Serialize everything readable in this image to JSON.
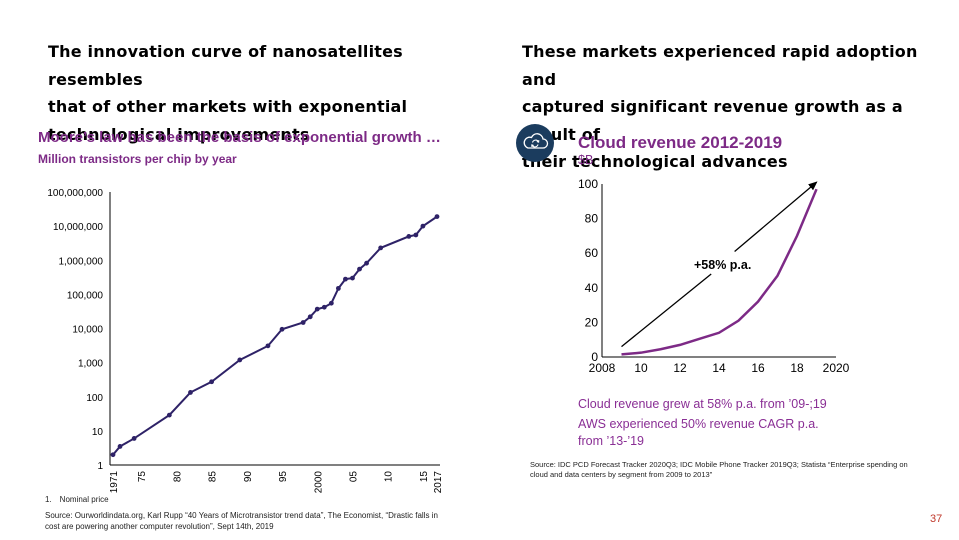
{
  "left": {
    "heading": [
      "The innovation curve of nanosatellites resembles",
      "that of other markets with exponential",
      "technological improvements"
    ],
    "chart_title": "Moore’s law has been the basis of exponential growth …",
    "chart_subtitle": "Million transistors per chip by year",
    "footnote": "1. Nominal price",
    "source": [
      "Source: Ourworldindata.org, Karl Rupp “40 Years of Microtransistor trend data”, The Economist, “Drastic falls in",
      "cost are powering another computer revolution”, Sept 14th, 2019"
    ]
  },
  "right": {
    "heading": [
      "These markets experienced rapid adoption and",
      "captured significant revenue growth as a result of",
      "their technological advances"
    ],
    "icon": "cloud-sync-icon",
    "chart_title": "Cloud revenue 2012-2019",
    "chart_unit": "$B",
    "growth_label": "+58% p.a.",
    "notes": [
      "Cloud revenue grew at 58% p.a. from ’09-;19",
      "AWS experienced 50% revenue CAGR p.a.",
      "from ’13-’19"
    ],
    "source": [
      "Source: IDC PCD Forecast Tracker 2020Q3; IDC Mobile Phone Tracker 2019Q3; Statista “Enterprise spending on",
      "cloud and data centers by segment from 2009 to 2013”"
    ]
  },
  "page_number": "37",
  "colors": {
    "line": "#2e2267",
    "purple": "#7d2a86",
    "icon_bg": "#1b3c5e",
    "page_number": "#c0392b"
  },
  "chart_data": [
    {
      "type": "line",
      "title": "Moore’s law has been the basis of exponential growth …",
      "ylabel": "Million transistors per chip by year",
      "y_scale": "log",
      "ylim": [
        1,
        100000000
      ],
      "yticks": [
        1,
        10,
        100,
        1000,
        10000,
        100000,
        1000000,
        10000000,
        100000000
      ],
      "ytick_labels": [
        "1",
        "10",
        "100",
        "1,000",
        "10,000",
        "100,000",
        "1,000,000",
        "10,000,000",
        "100,000,000"
      ],
      "xlim": [
        1971,
        2017
      ],
      "xticks": [
        1971,
        1975,
        1980,
        1985,
        1990,
        1995,
        2000,
        2005,
        2010,
        2015,
        2017
      ],
      "xtick_labels": [
        "1971",
        "75",
        "80",
        "85",
        "90",
        "95",
        "2000",
        "05",
        "10",
        "15",
        "2017"
      ],
      "x": [
        1971,
        1972,
        1974,
        1979,
        1982,
        1985,
        1989,
        1993,
        1995,
        1998,
        1999,
        2000,
        2001,
        2002,
        2003,
        2004,
        2005,
        2006,
        2007,
        2009,
        2013,
        2014,
        2015,
        2017
      ],
      "values": [
        2,
        3.5,
        6,
        29,
        134,
        275,
        1200,
        3100,
        9500,
        15000,
        22000,
        37000,
        42000,
        55000,
        150000,
        280000,
        300000,
        550000,
        820000,
        2300000,
        5000000,
        5500000,
        10000000,
        19000000
      ]
    },
    {
      "type": "line",
      "title": "Cloud revenue 2012-2019",
      "ylabel": "$B",
      "xlim": [
        2008,
        2020
      ],
      "ylim": [
        0,
        100
      ],
      "xticks": [
        2008,
        2010,
        2012,
        2014,
        2016,
        2018,
        2020
      ],
      "xtick_labels": [
        "2008",
        "10",
        "12",
        "14",
        "16",
        "18",
        "2020"
      ],
      "yticks": [
        0,
        20,
        40,
        60,
        80,
        100
      ],
      "x": [
        2009,
        2010,
        2011,
        2012,
        2013,
        2014,
        2015,
        2016,
        2017,
        2018,
        2019
      ],
      "values": [
        1.5,
        2.5,
        4.5,
        7,
        10.5,
        14,
        21,
        32,
        47,
        70,
        97
      ],
      "annotation": "+58% p.a."
    }
  ]
}
